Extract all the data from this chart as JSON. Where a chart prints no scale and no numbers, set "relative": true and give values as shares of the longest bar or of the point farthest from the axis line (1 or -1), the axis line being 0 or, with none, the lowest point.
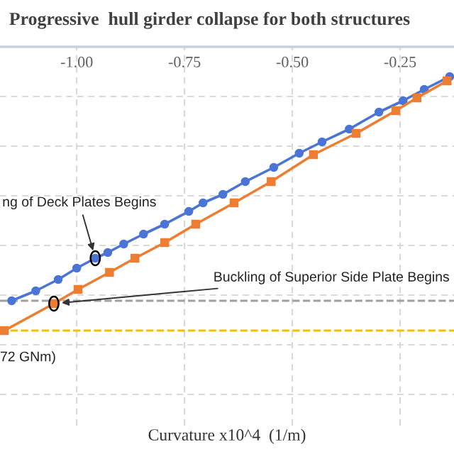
{
  "chart_data": {
    "type": "line",
    "title": "Progressive  hull girder collapse for both structures",
    "relative": true,
    "xlim": [
      -1.178,
      -0.125
    ],
    "xticks": [
      {
        "value": -1.0,
        "label": "-1.00"
      },
      {
        "value": -0.75,
        "label": "-0.75"
      },
      {
        "value": -0.5,
        "label": "-0.50"
      },
      {
        "value": -0.25,
        "label": "-0.25"
      }
    ],
    "tick_labels": "x",
    "grid": true,
    "series": [
      {
        "color": "#4a74d6",
        "marker": "circle",
        "x": [
          -1.151,
          -1.095,
          -1.043,
          -1.0,
          -0.957,
          -0.928,
          -0.891,
          -0.845,
          -0.796,
          -0.74,
          -0.707,
          -0.661,
          -0.609,
          -0.543,
          -0.484,
          -0.431,
          -0.368,
          -0.299,
          -0.243,
          -0.194,
          -0.135
        ],
        "values": [
          -0.895,
          -0.86,
          -0.82,
          -0.78,
          -0.745,
          -0.725,
          -0.695,
          -0.66,
          -0.625,
          -0.58,
          -0.55,
          -0.52,
          -0.475,
          -0.425,
          -0.375,
          -0.335,
          -0.29,
          -0.23,
          -0.19,
          -0.15,
          -0.105
        ]
      },
      {
        "color": "#ed7d31",
        "marker": "square",
        "x": [
          -1.168,
          -1.053,
          -0.997,
          -0.924,
          -0.865,
          -0.796,
          -0.724,
          -0.635,
          -0.549,
          -0.451,
          -0.352,
          -0.26,
          -0.211,
          -0.141
        ],
        "values": [
          -1.0,
          -0.905,
          -0.855,
          -0.795,
          -0.745,
          -0.69,
          -0.625,
          -0.55,
          -0.475,
          -0.38,
          -0.305,
          -0.225,
          -0.18,
          -0.12
        ]
      }
    ],
    "ref_lines": [
      {
        "axis": "y",
        "value": -0.895,
        "color": "#a0a0a0",
        "line_style": "dashed"
      },
      {
        "axis": "y",
        "value": -1.0,
        "color": "#f2c000",
        "line_style": "dashed"
      }
    ],
    "annotations": [
      {
        "text": "ng of Deck Plates Begins",
        "x": -0.957,
        "y": -0.745
      },
      {
        "text": "Buckling of Superior Side Plate Begins",
        "x": -1.053,
        "y": -0.905
      },
      "72 GNm)",
      "Curvature x10^4  (1/m)"
    ]
  }
}
